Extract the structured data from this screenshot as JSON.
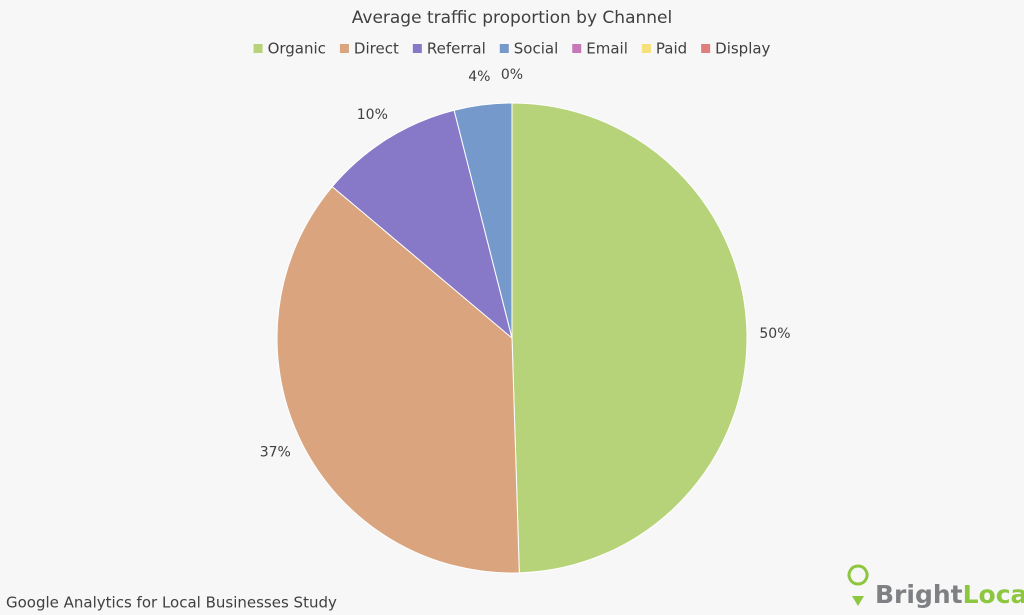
{
  "chart_data": {
    "type": "pie",
    "title": "Average traffic proportion by Channel",
    "categories": [
      "Organic",
      "Direct",
      "Referral",
      "Social",
      "Email",
      "Paid",
      "Display"
    ],
    "values": [
      50,
      37,
      10,
      4,
      0,
      0,
      0
    ],
    "value_labels": [
      "50%",
      "37%",
      "10%",
      "4%",
      "0%",
      null,
      null
    ],
    "colors": [
      "#b7d37a",
      "#d9a47e",
      "#8878c8",
      "#7699cc",
      "#c678b8",
      "#f5e07a",
      "#e07e7e"
    ],
    "legend": "top",
    "footnote": "Google Analytics for Local Businesses Study",
    "brand": [
      "Bright",
      "Local"
    ]
  }
}
